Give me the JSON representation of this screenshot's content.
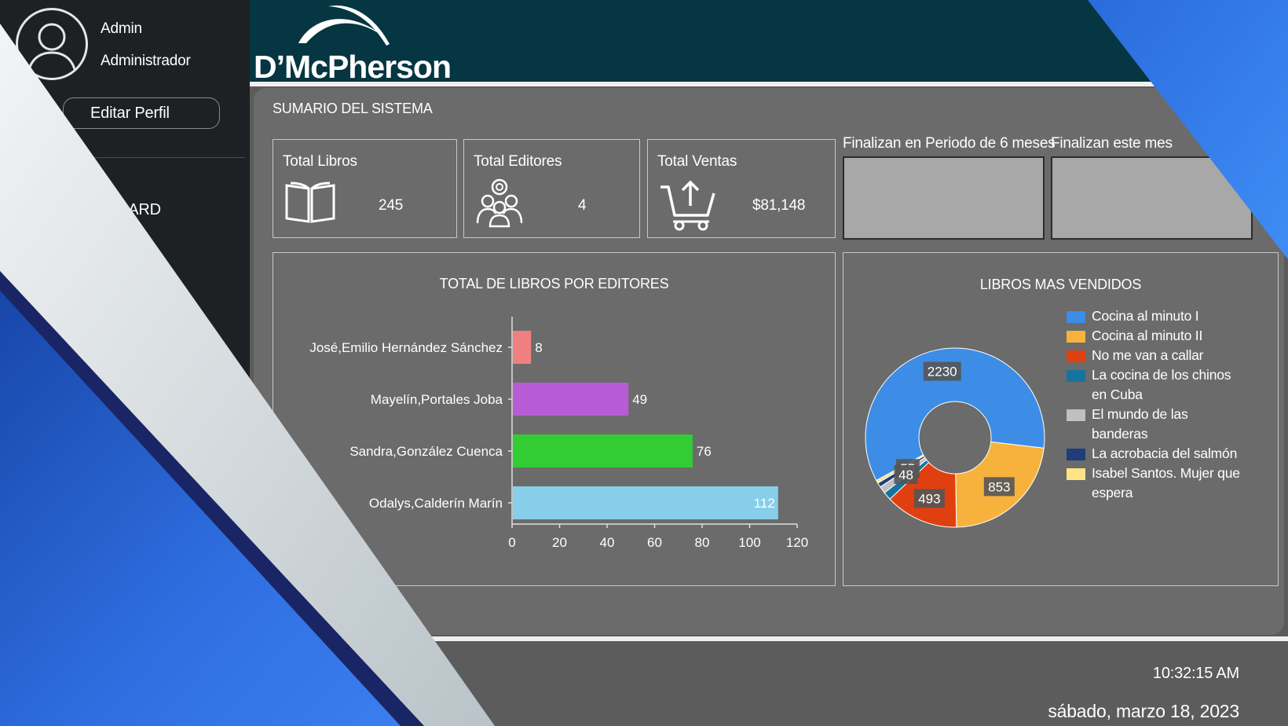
{
  "user": {
    "name": "Admin",
    "role": "Administrador",
    "edit_label": "Editar Perfil"
  },
  "nav": {
    "dashboard_label": "DASHBOARD"
  },
  "brand": {
    "logo_text": "D’McPherson"
  },
  "summary": {
    "title": "SUMARIO DEL SISTEMA",
    "cards": [
      {
        "label": "Total Libros",
        "value": "245",
        "icon": "book-icon"
      },
      {
        "label": "Total Editores",
        "value": "4",
        "icon": "team-icon"
      },
      {
        "label": "Total Ventas",
        "value": "$81,148",
        "icon": "cart-icon"
      }
    ],
    "periods": [
      {
        "label": "Finalizan en Periodo de 6 meses"
      },
      {
        "label": "Finalizan este mes"
      }
    ]
  },
  "chart_data": [
    {
      "type": "bar",
      "orientation": "horizontal",
      "title": "TOTAL DE LIBROS POR EDITORES",
      "categories": [
        "José,Emilio Hernández Sánchez",
        "Mayelín,Portales Joba",
        "Sandra,González Cuenca",
        "Odalys,Calderín Marín"
      ],
      "values": [
        8,
        49,
        76,
        112
      ],
      "colors": [
        "#f08080",
        "#b85cd6",
        "#32cd32",
        "#87ceeb"
      ],
      "xlim": [
        0,
        120
      ],
      "xticks": [
        0,
        20,
        40,
        60,
        80,
        100,
        120
      ],
      "grid": false
    },
    {
      "type": "pie",
      "donut": true,
      "title": "LIBROS MAS VENDIDOS",
      "labels": [
        "Cocina al minuto I",
        "Cocina al minuto II",
        "No me van a callar",
        "La cocina de los chinos en Cuba",
        "El mundo de las banderas",
        "La acrobacia del salmón",
        "Isabel Santos. Mujer que espera"
      ],
      "values": [
        2230,
        853,
        493,
        55,
        48,
        30,
        20
      ],
      "data_labels": [
        "2230",
        "853",
        "493",
        "55",
        "48",
        "",
        ""
      ],
      "colors": [
        "#3d8de6",
        "#f7b23e",
        "#e0400f",
        "#15749e",
        "#c0c0c0",
        "#1f3d78",
        "#ffe385"
      ],
      "legend": "right"
    }
  ],
  "footer": {
    "time": "10:32:15 AM",
    "date": "sábado, marzo 18, 2023"
  }
}
